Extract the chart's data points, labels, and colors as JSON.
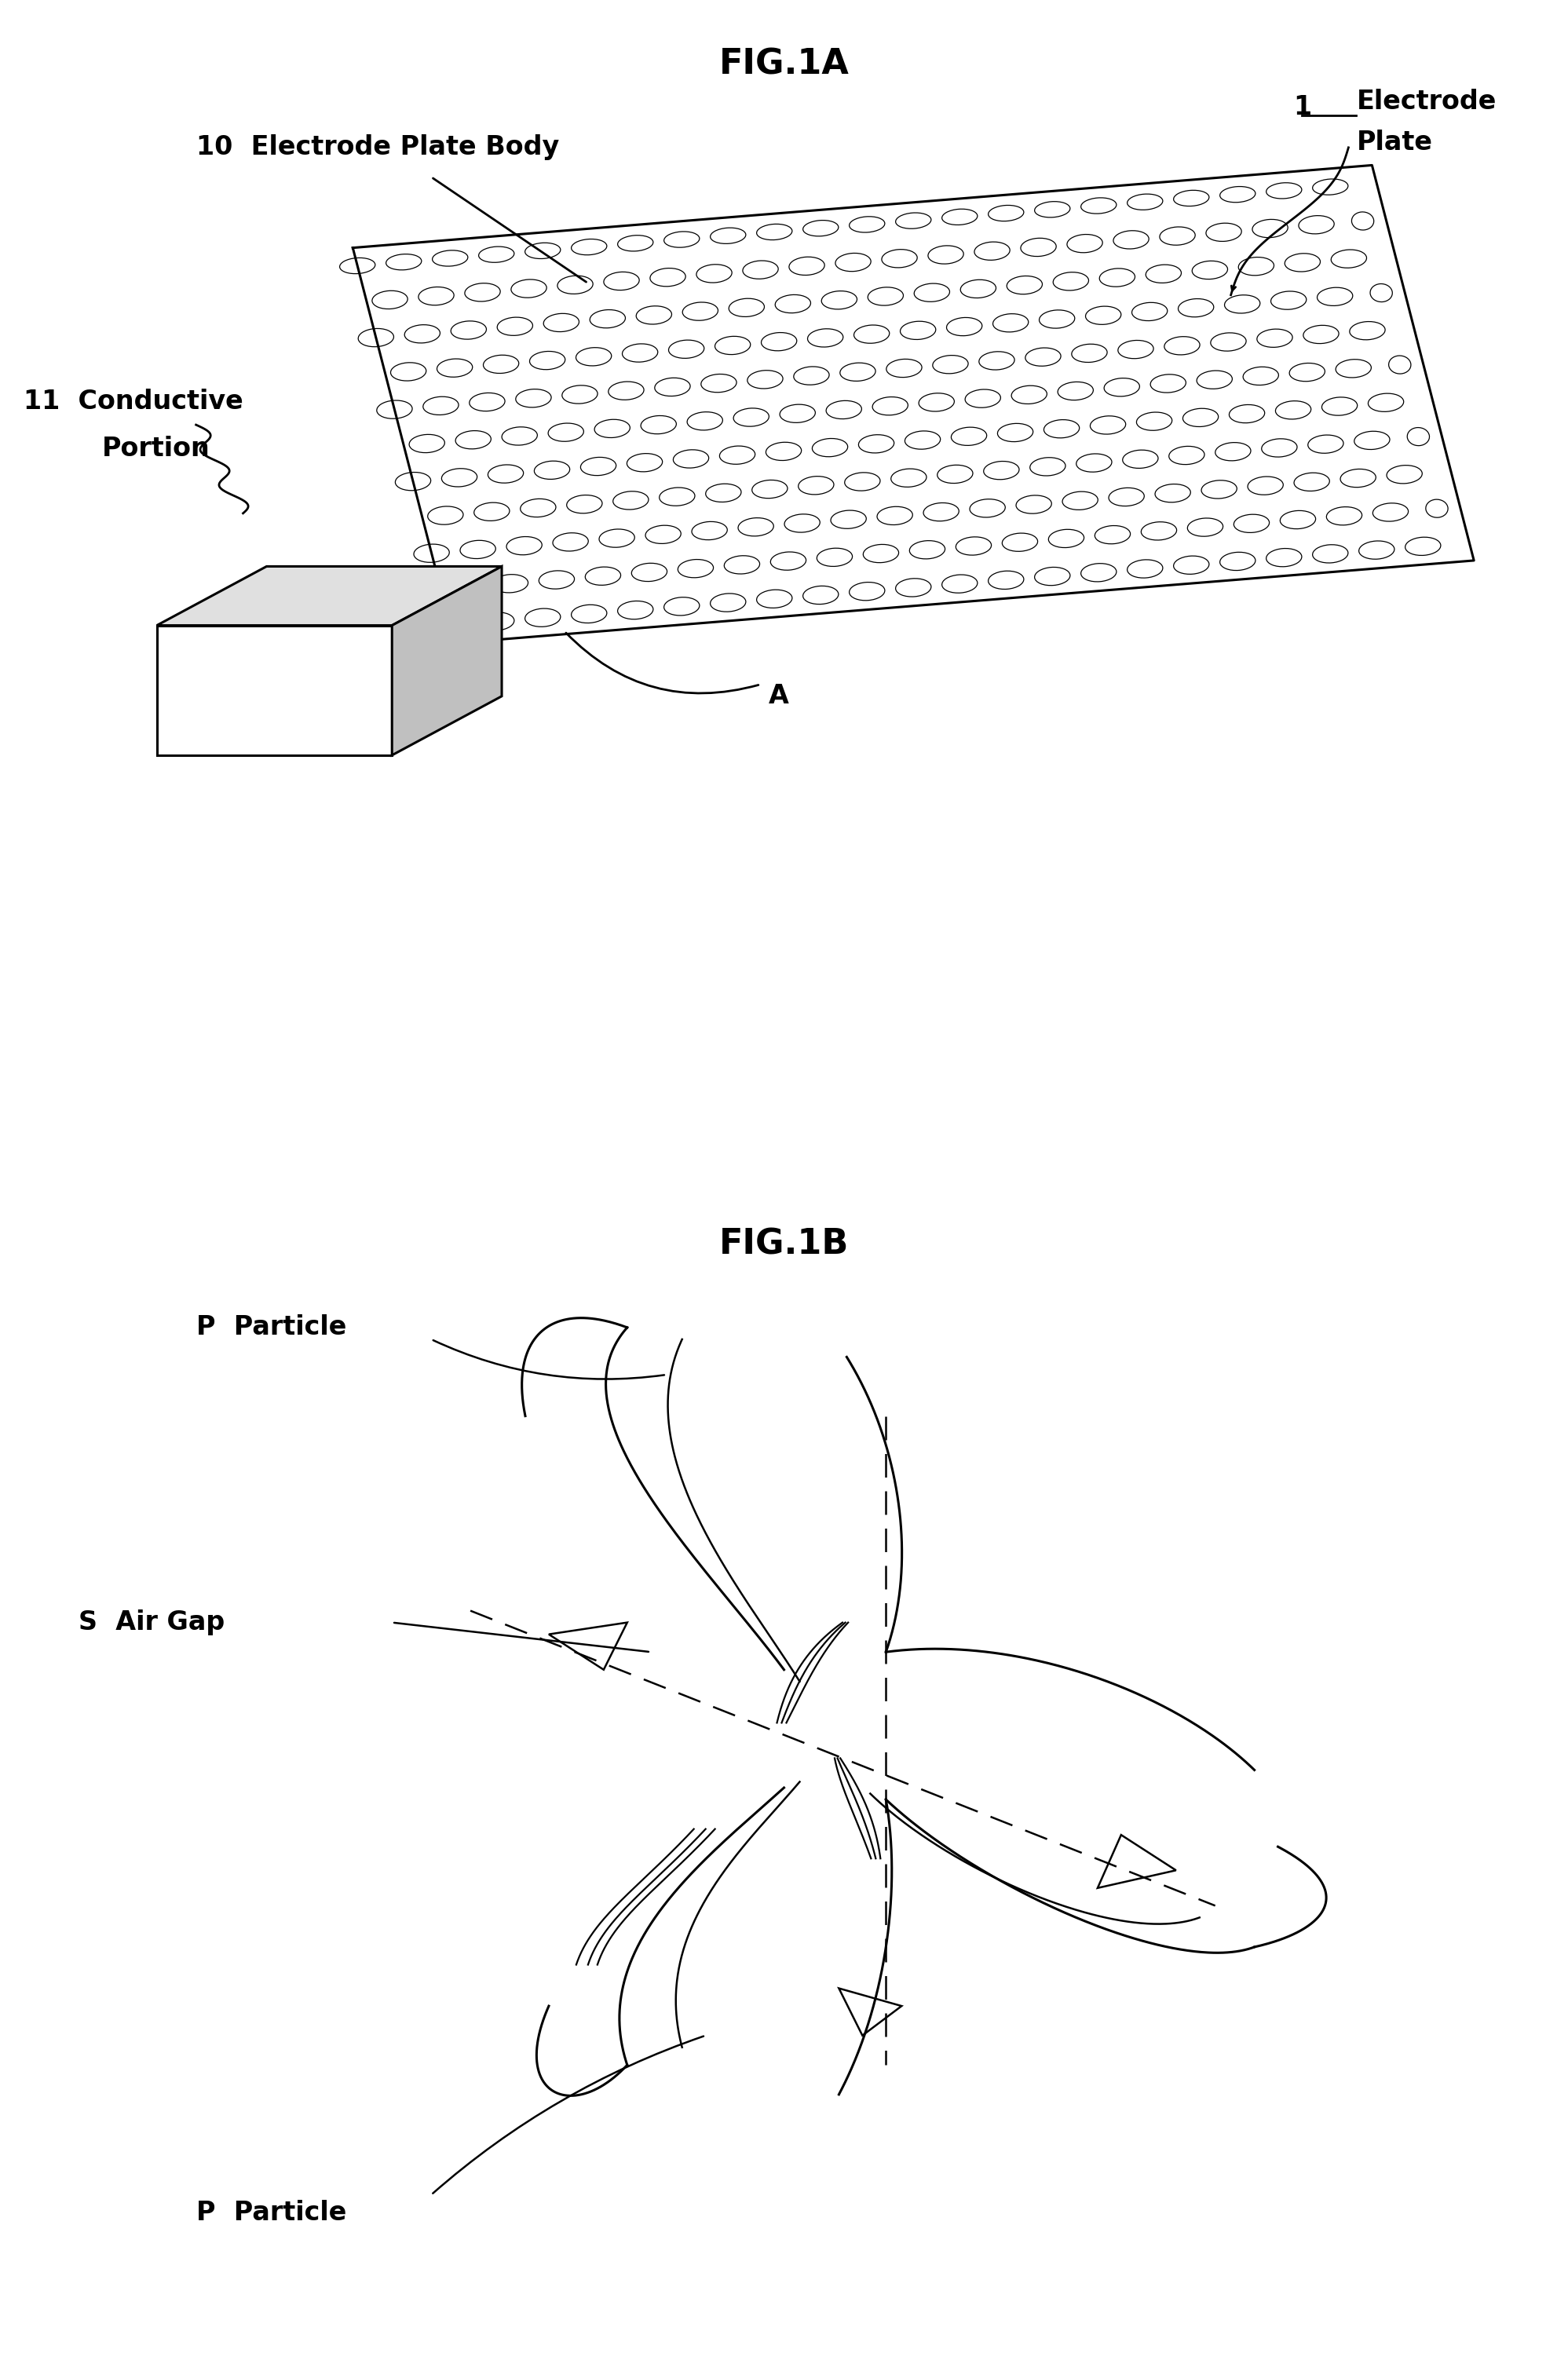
{
  "fig_title_1A": "FIG.1A",
  "fig_title_1B": "FIG.1B",
  "label_1_num": "1",
  "label_1_text1": "Electrode",
  "label_1_text2": "Plate",
  "label_10": "10  Electrode Plate Body",
  "label_11a": "11  Conductive",
  "label_11b": "Portion",
  "label_A": "A",
  "label_P_top": "P  Particle",
  "label_S": "S  Air Gap",
  "label_P_bottom": "P  Particle",
  "bg_color": "#ffffff",
  "line_color": "#000000",
  "fontsize_title": 32,
  "fontsize_label": 22
}
